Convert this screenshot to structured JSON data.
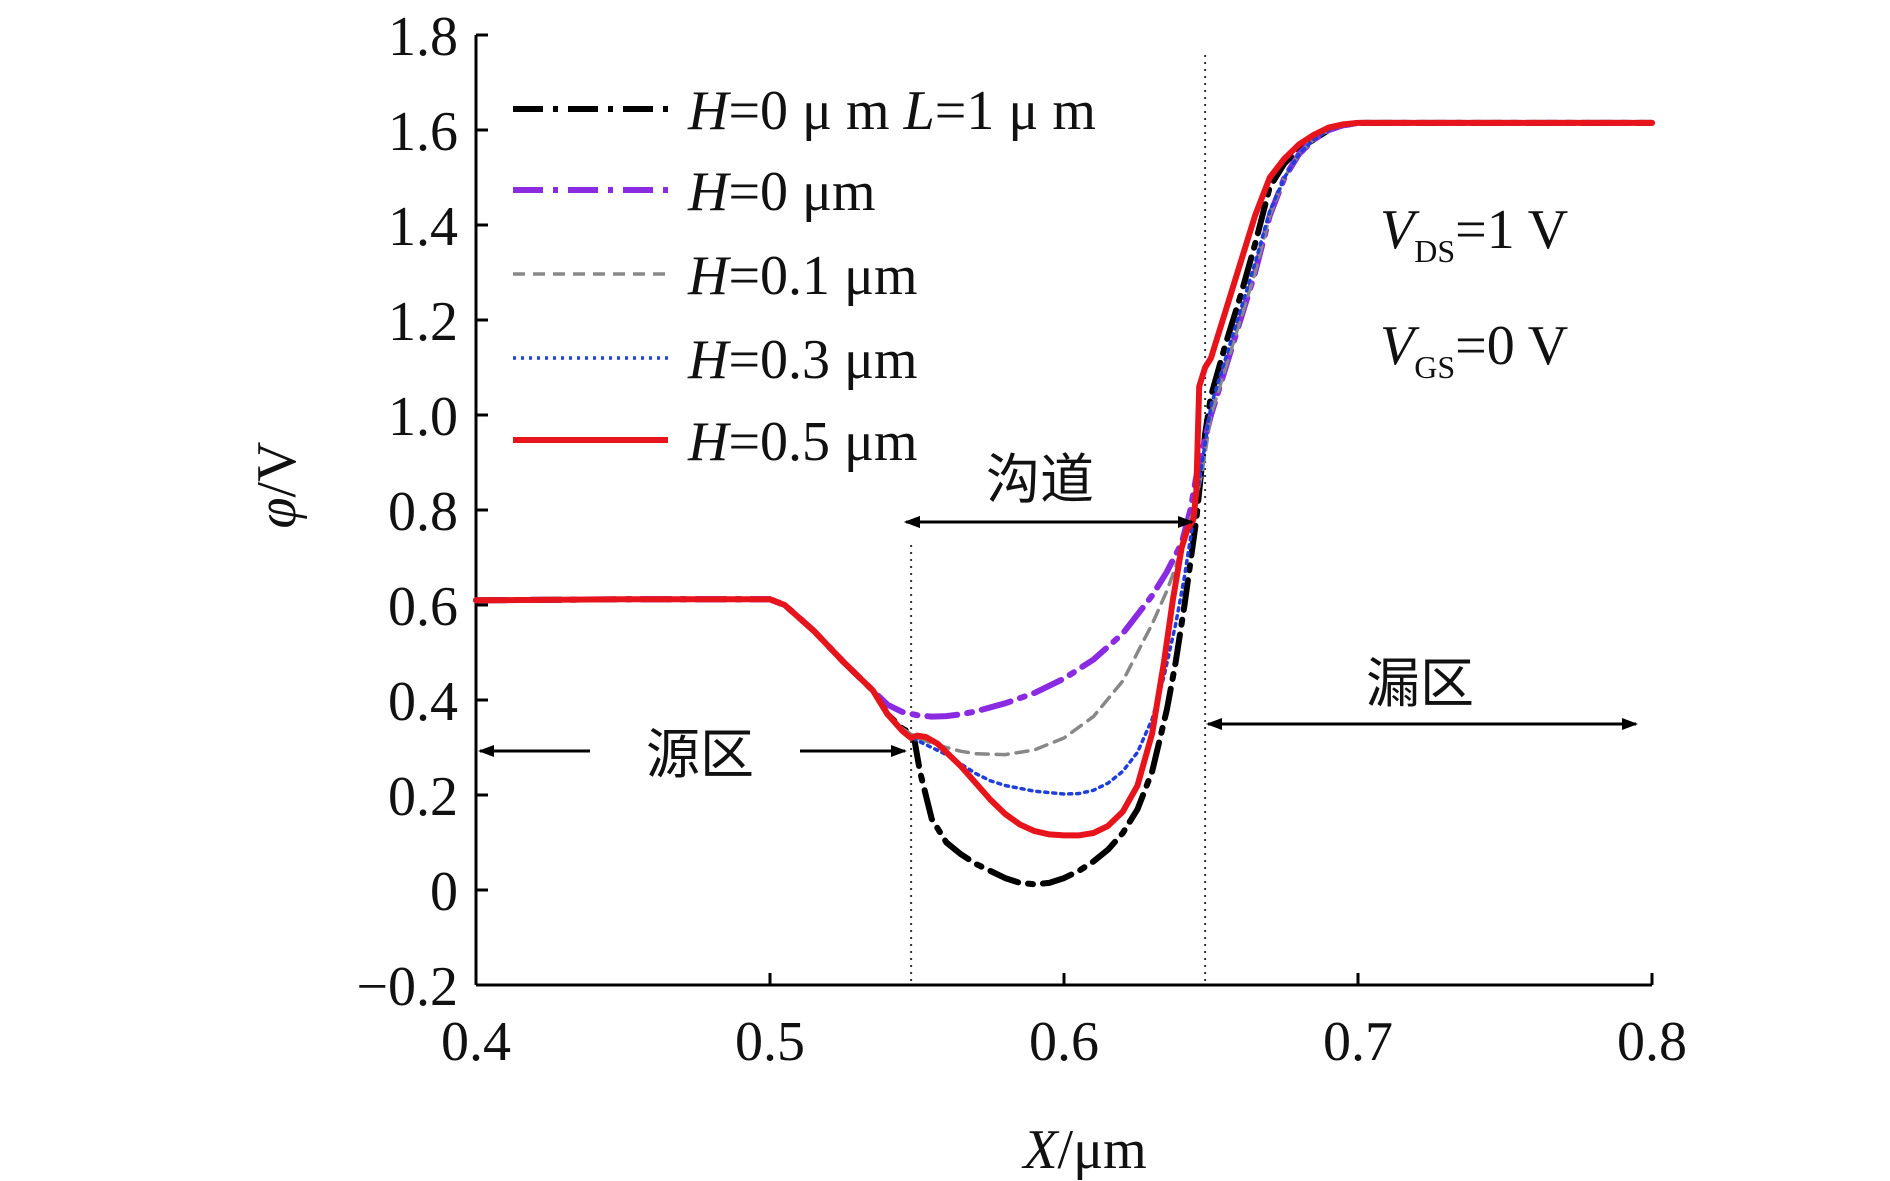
{
  "chart_data": {
    "type": "line",
    "title": "",
    "xlabel": {
      "italic": "X",
      "unit": "/μm"
    },
    "ylabel": {
      "italic": "φ",
      "unit": "/V"
    },
    "xlim": [
      0.4,
      0.8
    ],
    "ylim": [
      -0.2,
      1.8
    ],
    "xticks": [
      0.4,
      0.5,
      0.6,
      0.7,
      0.8
    ],
    "xtick_labels": [
      "0.4",
      "0.5",
      "0.6",
      "0.7",
      "0.8"
    ],
    "yticks": [
      -0.2,
      0,
      0.2,
      0.4,
      0.6,
      0.8,
      1.0,
      1.2,
      1.4,
      1.6,
      1.8
    ],
    "ytick_labels": [
      "−0.2",
      "0",
      "0.2",
      "0.4",
      "0.6",
      "0.8",
      "1.0",
      "1.2",
      "1.4",
      "1.6",
      "1.8"
    ],
    "grid": false,
    "legend_position": "top-left",
    "series": [
      {
        "name": "H=0 μm L=1 μm",
        "legend": {
          "italic": "H",
          "rest1": "=0 μ m ",
          "italic2": "L",
          "rest2": "=1 μ m"
        },
        "color": "#000000",
        "style": "dashdot",
        "x": [
          0.4,
          0.45,
          0.5,
          0.505,
          0.515,
          0.525,
          0.535,
          0.54,
          0.545,
          0.548,
          0.549,
          0.551,
          0.555,
          0.56,
          0.565,
          0.57,
          0.575,
          0.58,
          0.585,
          0.59,
          0.595,
          0.6,
          0.605,
          0.61,
          0.615,
          0.62,
          0.625,
          0.63,
          0.635,
          0.638,
          0.641,
          0.643,
          0.645,
          0.647,
          0.648,
          0.65,
          0.655,
          0.66,
          0.665,
          0.67,
          0.675,
          0.68,
          0.685,
          0.69,
          0.695,
          0.7,
          0.75,
          0.8
        ],
        "y": [
          0.61,
          0.612,
          0.612,
          0.6,
          0.545,
          0.48,
          0.42,
          0.37,
          0.34,
          0.33,
          0.32,
          0.25,
          0.15,
          0.1,
          0.075,
          0.055,
          0.04,
          0.025,
          0.015,
          0.012,
          0.015,
          0.025,
          0.04,
          0.06,
          0.085,
          0.12,
          0.17,
          0.25,
          0.38,
          0.48,
          0.6,
          0.69,
          0.78,
          0.9,
          0.96,
          1.04,
          1.15,
          1.25,
          1.36,
          1.48,
          1.53,
          1.56,
          1.58,
          1.6,
          1.61,
          1.615,
          1.615,
          1.615
        ]
      },
      {
        "name": "H=0 μm",
        "legend": {
          "italic": "H",
          "rest1": "=0 μm"
        },
        "color": "#8a2be2",
        "style": "dashdot",
        "x": [
          0.4,
          0.45,
          0.5,
          0.505,
          0.515,
          0.525,
          0.535,
          0.54,
          0.545,
          0.55,
          0.555,
          0.56,
          0.565,
          0.57,
          0.58,
          0.59,
          0.6,
          0.61,
          0.62,
          0.63,
          0.635,
          0.64,
          0.643,
          0.645,
          0.648,
          0.65,
          0.655,
          0.66,
          0.665,
          0.67,
          0.675,
          0.68,
          0.685,
          0.69,
          0.695,
          0.7,
          0.75,
          0.8
        ],
        "y": [
          0.61,
          0.612,
          0.612,
          0.6,
          0.545,
          0.48,
          0.42,
          0.39,
          0.375,
          0.368,
          0.365,
          0.366,
          0.37,
          0.376,
          0.393,
          0.415,
          0.445,
          0.485,
          0.54,
          0.62,
          0.67,
          0.73,
          0.8,
          0.87,
          0.95,
          1.0,
          1.1,
          1.2,
          1.3,
          1.42,
          1.5,
          1.55,
          1.58,
          1.6,
          1.61,
          1.615,
          1.615,
          1.615
        ]
      },
      {
        "name": "H=0.1 μm",
        "legend": {
          "italic": "H",
          "rest1": "=0.1 μm"
        },
        "color": "#888888",
        "style": "dashed",
        "x": [
          0.4,
          0.45,
          0.5,
          0.505,
          0.515,
          0.525,
          0.535,
          0.54,
          0.545,
          0.55,
          0.555,
          0.56,
          0.565,
          0.57,
          0.58,
          0.59,
          0.6,
          0.61,
          0.62,
          0.625,
          0.63,
          0.635,
          0.638,
          0.641,
          0.644,
          0.647,
          0.65,
          0.655,
          0.66,
          0.665,
          0.67,
          0.675,
          0.68,
          0.685,
          0.69,
          0.695,
          0.7,
          0.75,
          0.8
        ],
        "y": [
          0.61,
          0.612,
          0.612,
          0.6,
          0.545,
          0.48,
          0.42,
          0.37,
          0.34,
          0.32,
          0.31,
          0.3,
          0.292,
          0.287,
          0.285,
          0.295,
          0.32,
          0.365,
          0.44,
          0.5,
          0.56,
          0.63,
          0.68,
          0.74,
          0.8,
          0.88,
          1.0,
          1.1,
          1.2,
          1.3,
          1.42,
          1.5,
          1.55,
          1.58,
          1.6,
          1.61,
          1.615,
          1.615,
          1.615
        ]
      },
      {
        "name": "H=0.3 μm",
        "legend": {
          "italic": "H",
          "rest1": "=0.3 μm"
        },
        "color": "#1f3fdc",
        "style": "dotted",
        "x": [
          0.4,
          0.45,
          0.5,
          0.505,
          0.515,
          0.525,
          0.535,
          0.54,
          0.545,
          0.55,
          0.555,
          0.56,
          0.565,
          0.57,
          0.575,
          0.58,
          0.59,
          0.6,
          0.605,
          0.61,
          0.615,
          0.62,
          0.625,
          0.63,
          0.634,
          0.638,
          0.641,
          0.644,
          0.647,
          0.65,
          0.655,
          0.66,
          0.665,
          0.67,
          0.675,
          0.68,
          0.685,
          0.69,
          0.695,
          0.7,
          0.75,
          0.8
        ],
        "y": [
          0.61,
          0.612,
          0.612,
          0.6,
          0.545,
          0.48,
          0.42,
          0.37,
          0.335,
          0.315,
          0.3,
          0.285,
          0.265,
          0.245,
          0.23,
          0.22,
          0.208,
          0.202,
          0.203,
          0.21,
          0.225,
          0.25,
          0.29,
          0.36,
          0.45,
          0.56,
          0.66,
          0.78,
          0.9,
          1.02,
          1.12,
          1.22,
          1.32,
          1.43,
          1.5,
          1.55,
          1.58,
          1.6,
          1.61,
          1.615,
          1.615,
          1.615
        ]
      },
      {
        "name": "H=0.5 μm",
        "legend": {
          "italic": "H",
          "rest1": "=0.5 μm"
        },
        "color": "#e8141b",
        "style": "solid",
        "x": [
          0.4,
          0.45,
          0.5,
          0.505,
          0.515,
          0.525,
          0.535,
          0.54,
          0.545,
          0.548,
          0.55,
          0.553,
          0.557,
          0.56,
          0.565,
          0.57,
          0.575,
          0.58,
          0.585,
          0.59,
          0.595,
          0.6,
          0.605,
          0.61,
          0.615,
          0.62,
          0.625,
          0.63,
          0.634,
          0.637,
          0.64,
          0.642,
          0.644,
          0.645,
          0.646,
          0.648,
          0.65,
          0.655,
          0.66,
          0.665,
          0.67,
          0.675,
          0.68,
          0.685,
          0.69,
          0.695,
          0.7,
          0.75,
          0.8
        ],
        "y": [
          0.61,
          0.612,
          0.612,
          0.6,
          0.545,
          0.48,
          0.42,
          0.37,
          0.335,
          0.32,
          0.325,
          0.322,
          0.308,
          0.29,
          0.26,
          0.225,
          0.19,
          0.16,
          0.138,
          0.124,
          0.117,
          0.115,
          0.115,
          0.12,
          0.135,
          0.165,
          0.22,
          0.33,
          0.48,
          0.61,
          0.72,
          0.76,
          0.78,
          0.84,
          1.06,
          1.1,
          1.12,
          1.22,
          1.32,
          1.42,
          1.5,
          1.54,
          1.57,
          1.59,
          1.605,
          1.612,
          1.615,
          1.615,
          1.615
        ]
      }
    ],
    "annotations": {
      "vds": {
        "italic": "V",
        "sub": "DS",
        "rest": "=1 V"
      },
      "vgs": {
        "italic": "V",
        "sub": "GS",
        "rest": "=0 V"
      },
      "channel_label": "沟道",
      "source_label": "源区",
      "drain_label": "漏区",
      "source_boundary_x": 0.548,
      "drain_boundary_x": 0.648
    }
  }
}
